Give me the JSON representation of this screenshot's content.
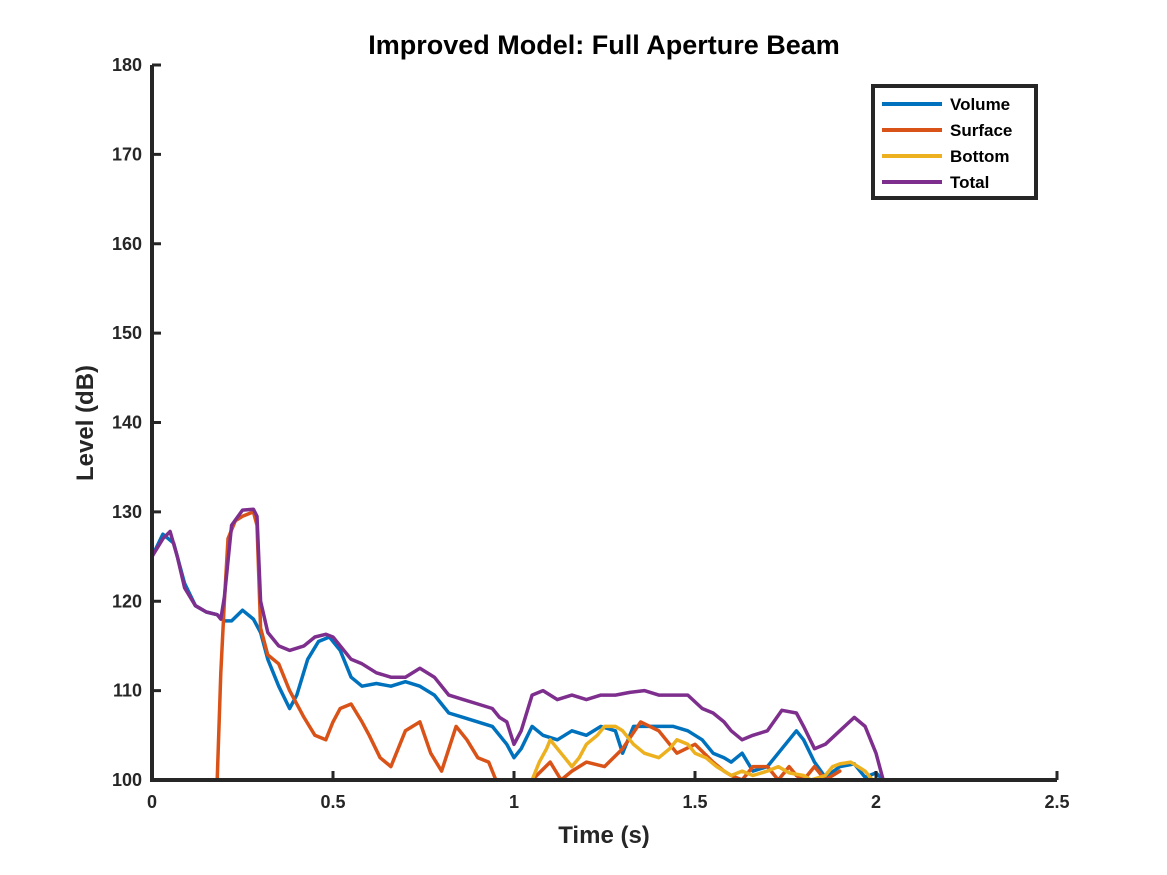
{
  "chart_data": {
    "type": "line",
    "title": "Improved Model: Full Aperture Beam",
    "xlabel": "Time (s)",
    "ylabel": "Level (dB)",
    "xlim": [
      0,
      2.5
    ],
    "ylim": [
      100,
      180
    ],
    "xticks": [
      0,
      0.5,
      1,
      1.5,
      2,
      2.5
    ],
    "xtick_labels": [
      "0",
      "0.5",
      "1",
      "1.5",
      "2",
      "2.5"
    ],
    "yticks": [
      100,
      110,
      120,
      130,
      140,
      150,
      160,
      170,
      180
    ],
    "ytick_labels": [
      "100",
      "110",
      "120",
      "130",
      "140",
      "150",
      "160",
      "170",
      "180"
    ],
    "grid": false,
    "legend_position": "top-right",
    "series": [
      {
        "name": "Volume",
        "color": "#0072BD",
        "x": [
          0.0,
          0.03,
          0.06,
          0.09,
          0.12,
          0.15,
          0.18,
          0.2,
          0.22,
          0.25,
          0.28,
          0.3,
          0.32,
          0.35,
          0.38,
          0.4,
          0.43,
          0.46,
          0.49,
          0.52,
          0.55,
          0.58,
          0.62,
          0.66,
          0.7,
          0.74,
          0.78,
          0.82,
          0.86,
          0.9,
          0.94,
          0.98,
          1.0,
          1.02,
          1.05,
          1.08,
          1.12,
          1.16,
          1.2,
          1.24,
          1.28,
          1.3,
          1.33,
          1.36,
          1.4,
          1.44,
          1.48,
          1.52,
          1.55,
          1.58,
          1.6,
          1.63,
          1.66,
          1.7,
          1.74,
          1.78,
          1.8,
          1.83,
          1.86,
          1.9,
          1.94,
          1.97,
          2.0,
          2.02
        ],
        "y": [
          125.0,
          127.5,
          126.5,
          122.0,
          119.5,
          118.8,
          118.5,
          117.8,
          117.8,
          119.0,
          118.0,
          116.5,
          113.5,
          110.5,
          108.0,
          109.5,
          113.5,
          115.5,
          116.0,
          114.5,
          111.5,
          110.5,
          110.8,
          110.5,
          111.0,
          110.5,
          109.5,
          107.5,
          107.0,
          106.5,
          106.0,
          104.0,
          102.5,
          103.5,
          106.0,
          105.0,
          104.5,
          105.5,
          105.0,
          106.0,
          105.5,
          103.0,
          106.0,
          106.0,
          106.0,
          106.0,
          105.5,
          104.5,
          103.0,
          102.5,
          102.0,
          103.0,
          101.0,
          101.5,
          103.5,
          105.5,
          104.5,
          102.0,
          100.3,
          101.5,
          101.8,
          100.3,
          100.8,
          100.0
        ]
      },
      {
        "name": "Surface",
        "color": "#D95319",
        "x": [
          0.18,
          0.19,
          0.2,
          0.21,
          0.23,
          0.25,
          0.28,
          0.29,
          0.3,
          0.32,
          0.35,
          0.38,
          0.42,
          0.45,
          0.48,
          0.5,
          0.52,
          0.55,
          0.58,
          0.6,
          0.63,
          0.66,
          0.7,
          0.74,
          0.77,
          0.8,
          0.84,
          0.87,
          0.9,
          0.93,
          0.95,
          1.0,
          1.05,
          1.1,
          1.13,
          1.16,
          1.2,
          1.25,
          1.3,
          1.35,
          1.4,
          1.45,
          1.5,
          1.55,
          1.58,
          1.6,
          1.63,
          1.66,
          1.7,
          1.73,
          1.76,
          1.78,
          1.8,
          1.83,
          1.86,
          1.9
        ],
        "y": [
          100.0,
          112.0,
          120.0,
          127.0,
          129.0,
          129.5,
          130.0,
          128.5,
          117.0,
          114.0,
          113.0,
          110.0,
          107.0,
          105.0,
          104.5,
          106.5,
          108.0,
          108.5,
          106.5,
          105.0,
          102.5,
          101.5,
          105.5,
          106.5,
          103.0,
          101.0,
          106.0,
          104.5,
          102.5,
          102.0,
          100.0,
          100.0,
          100.0,
          102.0,
          100.0,
          101.0,
          102.0,
          101.5,
          103.5,
          106.5,
          105.5,
          103.0,
          104.0,
          102.0,
          101.0,
          100.5,
          100.0,
          101.5,
          101.5,
          100.0,
          101.5,
          100.5,
          100.0,
          101.5,
          100.0,
          101.0
        ]
      },
      {
        "name": "Bottom",
        "color": "#EDB120",
        "x": [
          1.05,
          1.07,
          1.09,
          1.1,
          1.12,
          1.14,
          1.16,
          1.18,
          1.2,
          1.23,
          1.25,
          1.28,
          1.3,
          1.33,
          1.36,
          1.4,
          1.43,
          1.45,
          1.48,
          1.5,
          1.53,
          1.56,
          1.58,
          1.6,
          1.63,
          1.66,
          1.7,
          1.73,
          1.76,
          1.8,
          1.82,
          1.86,
          1.88,
          1.9,
          1.93,
          1.95,
          1.97,
          1.99
        ],
        "y": [
          100.0,
          102.0,
          103.5,
          104.5,
          103.5,
          102.5,
          101.5,
          102.5,
          104.0,
          105.0,
          106.0,
          106.0,
          105.5,
          104.0,
          103.0,
          102.5,
          103.5,
          104.5,
          104.0,
          103.0,
          102.5,
          101.5,
          101.0,
          100.5,
          101.0,
          100.5,
          101.0,
          101.5,
          100.8,
          100.5,
          100.0,
          100.5,
          101.5,
          101.8,
          102.0,
          101.5,
          101.0,
          100.0
        ]
      },
      {
        "name": "Total",
        "color": "#7E2F8E",
        "x": [
          0.0,
          0.03,
          0.05,
          0.07,
          0.09,
          0.12,
          0.15,
          0.18,
          0.19,
          0.2,
          0.22,
          0.25,
          0.28,
          0.29,
          0.3,
          0.32,
          0.35,
          0.38,
          0.42,
          0.45,
          0.48,
          0.5,
          0.52,
          0.55,
          0.58,
          0.62,
          0.66,
          0.7,
          0.74,
          0.78,
          0.82,
          0.86,
          0.9,
          0.94,
          0.96,
          0.98,
          1.0,
          1.02,
          1.05,
          1.08,
          1.12,
          1.16,
          1.2,
          1.24,
          1.28,
          1.32,
          1.36,
          1.4,
          1.44,
          1.48,
          1.52,
          1.55,
          1.58,
          1.6,
          1.63,
          1.66,
          1.7,
          1.74,
          1.78,
          1.8,
          1.83,
          1.86,
          1.9,
          1.94,
          1.97,
          2.0,
          2.02
        ],
        "y": [
          125.0,
          127.0,
          127.8,
          125.0,
          121.5,
          119.5,
          118.8,
          118.5,
          118.0,
          120.5,
          128.5,
          130.2,
          130.3,
          129.5,
          120.0,
          116.5,
          115.0,
          114.5,
          115.0,
          116.0,
          116.3,
          116.0,
          115.0,
          113.5,
          113.0,
          112.0,
          111.5,
          111.5,
          112.5,
          111.5,
          109.5,
          109.0,
          108.5,
          108.0,
          107.0,
          106.5,
          104.0,
          105.5,
          109.5,
          110.0,
          109.0,
          109.5,
          109.0,
          109.5,
          109.5,
          109.8,
          110.0,
          109.5,
          109.5,
          109.5,
          108.0,
          107.5,
          106.5,
          105.5,
          104.5,
          105.0,
          105.5,
          107.8,
          107.5,
          106.0,
          103.5,
          104.0,
          105.5,
          107.0,
          106.0,
          103.0,
          100.0
        ]
      }
    ]
  }
}
